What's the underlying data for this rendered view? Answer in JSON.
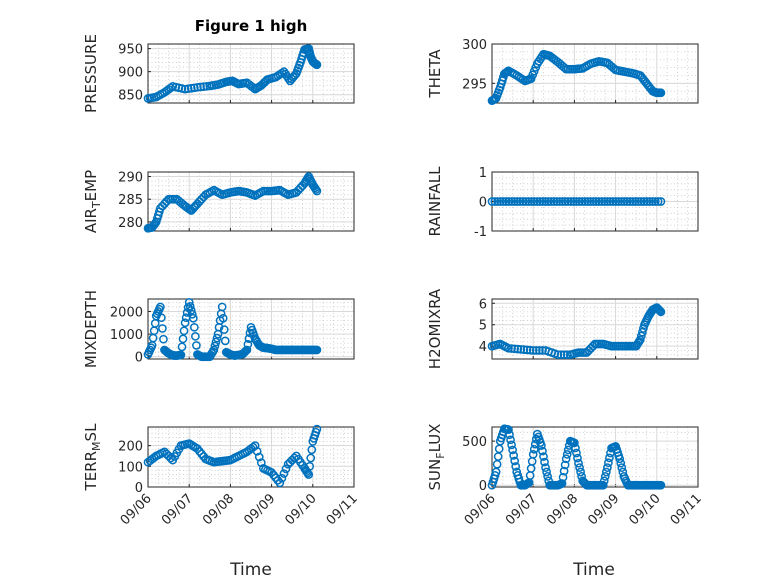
{
  "figure": {
    "title": "Figure 1 high",
    "xlabel": "Time",
    "x_tick_labels": [
      "09/06",
      "09/07",
      "09/08",
      "09/09",
      "09/10",
      "09/11"
    ]
  },
  "chart_data": [
    {
      "type": "scatter",
      "ylabel": "PRESSURE",
      "title": "Figure 1 high",
      "xlim": [
        0,
        5
      ],
      "ylim": [
        832,
        960
      ],
      "yticks": [
        850,
        900,
        950
      ],
      "series": [
        {
          "x": [
            0,
            0.2,
            0.4,
            0.6,
            0.9,
            1.2,
            1.5,
            1.7,
            1.9,
            2.05,
            2.2,
            2.4,
            2.6,
            2.75,
            2.9,
            3.1,
            3.3,
            3.45,
            3.6,
            3.7,
            3.8,
            3.9,
            3.95,
            4.0,
            4.05,
            4.1
          ],
          "y": [
            842,
            845,
            855,
            868,
            862,
            866,
            869,
            872,
            878,
            880,
            873,
            876,
            862,
            870,
            883,
            888,
            900,
            880,
            896,
            920,
            948,
            950,
            932,
            922,
            918,
            915
          ]
        }
      ]
    },
    {
      "type": "scatter",
      "ylabel": "THETA",
      "xlim": [
        0,
        5
      ],
      "ylim": [
        292.5,
        300
      ],
      "yticks": [
        295,
        300
      ],
      "series": [
        {
          "x": [
            0,
            0.1,
            0.2,
            0.3,
            0.4,
            0.6,
            0.8,
            0.95,
            1.1,
            1.25,
            1.4,
            1.6,
            1.8,
            2.0,
            2.2,
            2.4,
            2.6,
            2.8,
            3.0,
            3.2,
            3.4,
            3.6,
            3.75,
            3.9,
            4.0,
            4.1
          ],
          "y": [
            292.8,
            293.1,
            294.5,
            296.2,
            296.6,
            296.0,
            295.3,
            295.6,
            297.5,
            298.7,
            298.5,
            297.7,
            296.8,
            296.8,
            296.9,
            297.5,
            297.8,
            297.6,
            296.7,
            296.5,
            296.3,
            296.0,
            295.0,
            294.0,
            293.8,
            293.8
          ]
        }
      ]
    },
    {
      "type": "scatter",
      "ylabel": "AIR_TEMP",
      "xlim": [
        0,
        5
      ],
      "ylim": [
        278,
        291
      ],
      "yticks": [
        280,
        285,
        290
      ],
      "series": [
        {
          "x": [
            0,
            0.1,
            0.2,
            0.3,
            0.5,
            0.7,
            0.9,
            1.05,
            1.2,
            1.4,
            1.6,
            1.8,
            2.0,
            2.2,
            2.4,
            2.6,
            2.8,
            3.0,
            3.2,
            3.4,
            3.6,
            3.8,
            3.9,
            4.0,
            4.1
          ],
          "y": [
            278.6,
            278.8,
            280.0,
            283.0,
            285.0,
            285.0,
            283.5,
            282.5,
            284.0,
            286.0,
            287.0,
            286.0,
            286.5,
            286.8,
            286.5,
            285.8,
            286.8,
            286.8,
            287.0,
            286.0,
            286.5,
            288.5,
            290.0,
            288.2,
            286.8
          ]
        }
      ]
    },
    {
      "type": "scatter",
      "ylabel": "RAINFALL",
      "xlim": [
        0,
        5
      ],
      "ylim": [
        -1,
        1
      ],
      "yticks": [
        -1,
        0,
        1
      ],
      "series": [
        {
          "x": [
            0,
            4.1
          ],
          "y": [
            0,
            0
          ],
          "constant": true
        }
      ]
    },
    {
      "type": "scatter",
      "ylabel": "MIXDEPTH",
      "xlim": [
        0,
        5
      ],
      "ylim": [
        -100,
        2550
      ],
      "yticks": [
        0,
        1000,
        2000
      ],
      "series": [
        {
          "x": [
            0,
            0.1,
            0.2,
            0.3,
            0.4,
            0.5,
            0.6,
            0.7,
            0.8,
            0.9,
            1.0,
            1.1,
            1.2,
            1.3,
            1.4,
            1.5,
            1.6,
            1.7,
            1.8,
            1.9,
            2.0,
            2.1,
            2.2,
            2.3,
            2.4,
            2.5,
            2.6,
            2.7,
            2.8,
            2.9,
            3.0,
            3.1,
            3.2,
            3.3,
            3.4,
            3.5,
            3.6,
            3.7,
            3.8,
            3.9,
            4.0,
            4.1
          ],
          "y": [
            100,
            500,
            1800,
            2200,
            300,
            150,
            60,
            50,
            80,
            1500,
            2400,
            1700,
            100,
            0,
            0,
            0,
            300,
            1000,
            2200,
            200,
            100,
            50,
            80,
            120,
            300,
            1300,
            800,
            500,
            400,
            380,
            350,
            300,
            300,
            300,
            300,
            300,
            300,
            300,
            300,
            300,
            300,
            300
          ]
        }
      ]
    },
    {
      "type": "scatter",
      "ylabel": "H2OMIXRA",
      "xlim": [
        0,
        5
      ],
      "ylim": [
        3.4,
        6.2
      ],
      "yticks": [
        4,
        5,
        6
      ],
      "series": [
        {
          "x": [
            0,
            0.2,
            0.4,
            0.7,
            1.0,
            1.3,
            1.6,
            1.9,
            2.1,
            2.3,
            2.5,
            2.7,
            2.9,
            3.1,
            3.3,
            3.5,
            3.6,
            3.7,
            3.8,
            3.9,
            4.0,
            4.1
          ],
          "y": [
            4.0,
            4.1,
            3.9,
            3.85,
            3.8,
            3.8,
            3.6,
            3.6,
            3.7,
            3.7,
            4.1,
            4.1,
            4.0,
            4.0,
            4.0,
            4.0,
            4.3,
            5.0,
            5.4,
            5.7,
            5.8,
            5.6
          ]
        }
      ]
    },
    {
      "type": "scatter",
      "ylabel": "TERR_MSL",
      "xlim": [
        0,
        5
      ],
      "ylim": [
        0,
        290
      ],
      "yticks": [
        0,
        100,
        200
      ],
      "series": [
        {
          "x": [
            0,
            0.2,
            0.4,
            0.6,
            0.8,
            1.0,
            1.2,
            1.4,
            1.6,
            1.8,
            2.0,
            2.2,
            2.4,
            2.6,
            2.8,
            3.0,
            3.2,
            3.4,
            3.6,
            3.8,
            3.9,
            4.0,
            4.1
          ],
          "y": [
            120,
            150,
            170,
            130,
            200,
            210,
            185,
            135,
            120,
            125,
            130,
            150,
            170,
            200,
            90,
            70,
            20,
            110,
            150,
            90,
            60,
            220,
            280
          ]
        }
      ]
    },
    {
      "type": "scatter",
      "ylabel": "SUN_FLUX",
      "xlim": [
        0,
        5
      ],
      "ylim": [
        -20,
        660
      ],
      "yticks": [
        0,
        500
      ],
      "series": [
        {
          "x": [
            0,
            0.1,
            0.2,
            0.3,
            0.4,
            0.5,
            0.6,
            0.7,
            0.8,
            0.9,
            1.0,
            1.1,
            1.2,
            1.3,
            1.4,
            1.5,
            1.6,
            1.7,
            1.8,
            1.9,
            2.0,
            2.1,
            2.2,
            2.3,
            2.4,
            2.5,
            2.6,
            2.7,
            2.8,
            2.9,
            3.0,
            3.1,
            3.2,
            3.3,
            3.4,
            3.5,
            3.6,
            3.7,
            3.8,
            3.9,
            4.0,
            4.1
          ],
          "y": [
            0,
            150,
            500,
            640,
            630,
            400,
            150,
            0,
            0,
            30,
            350,
            580,
            450,
            200,
            0,
            0,
            0,
            20,
            300,
            500,
            480,
            250,
            50,
            0,
            0,
            0,
            0,
            0,
            200,
            420,
            440,
            300,
            100,
            0,
            0,
            0,
            0,
            0,
            0,
            0,
            0,
            0
          ]
        }
      ]
    }
  ]
}
